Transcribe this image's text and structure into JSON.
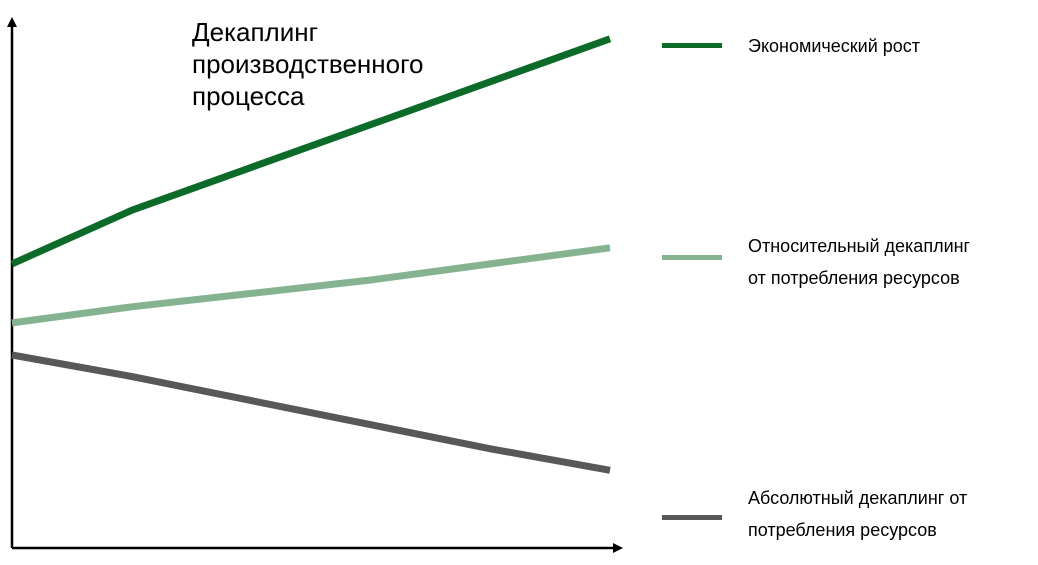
{
  "chart_data": {
    "type": "line",
    "title": "Декаплинг\nпроизводственного\nпроцесса",
    "xlabel": "",
    "ylabel": "",
    "x": [
      0,
      1,
      2,
      3,
      4,
      5
    ],
    "xlim": [
      0,
      5
    ],
    "ylim": [
      0,
      10
    ],
    "grid": false,
    "legend_position": "right",
    "axis_arrows": true,
    "series": [
      {
        "name": "Экономический рост",
        "color": "#0d6b2a",
        "values": [
          5.3,
          6.3,
          7.1,
          7.9,
          8.7,
          9.5
        ]
      },
      {
        "name": "Относительный декаплинг\nот потребления ресурсов",
        "color": "#86b38f",
        "values": [
          4.2,
          4.5,
          4.75,
          5.0,
          5.3,
          5.6
        ]
      },
      {
        "name": "Абсолютный декаплинг от\nпотребления ресурсов",
        "color": "#585858",
        "values": [
          3.6,
          3.2,
          2.75,
          2.3,
          1.85,
          1.45
        ]
      }
    ]
  }
}
